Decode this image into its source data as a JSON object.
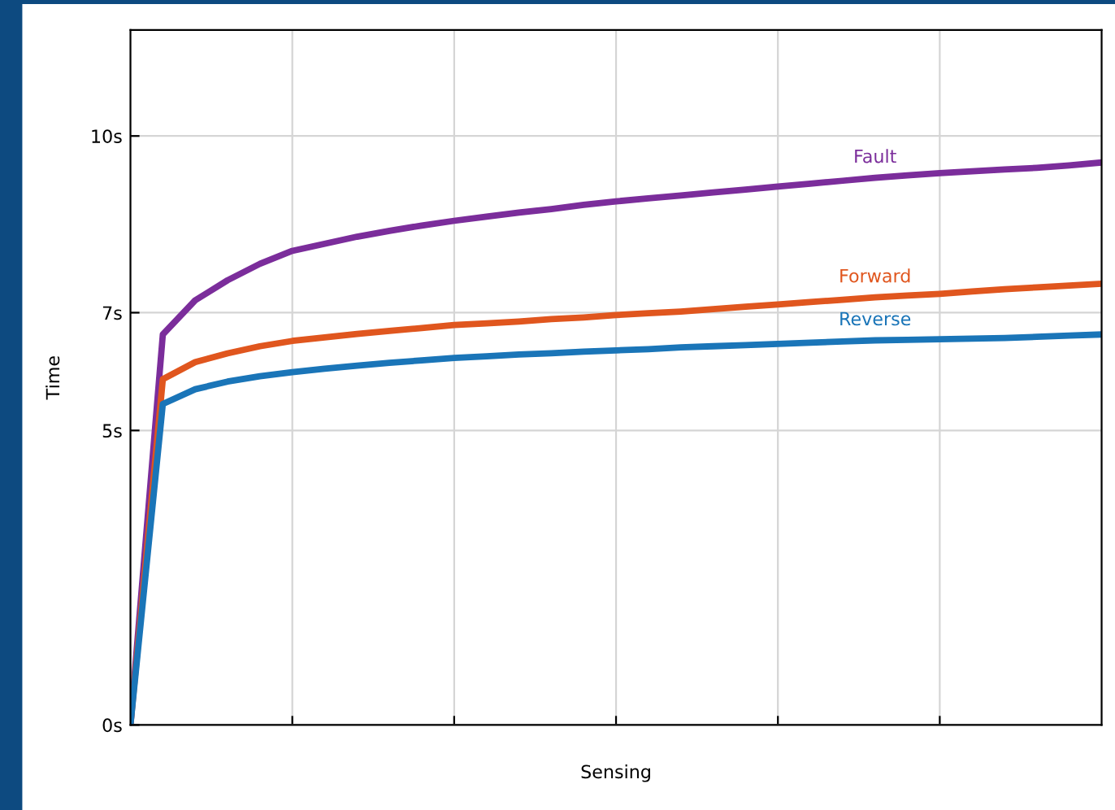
{
  "chart_data": {
    "type": "line",
    "xlabel": "Sensing",
    "ylabel": "Time",
    "categories": [
      null,
      null,
      null,
      null,
      null,
      null,
      null,
      null,
      null,
      null,
      null,
      null,
      null,
      null,
      null,
      null,
      null,
      null,
      null,
      null,
      null,
      null,
      null,
      null,
      null,
      null,
      null,
      null,
      null,
      null,
      null
    ],
    "ylim": [
      0,
      11.8
    ],
    "yticks": [
      {
        "value": 0,
        "label": "0s"
      },
      {
        "value": 5,
        "label": "5s"
      },
      {
        "value": 7,
        "label": "7s"
      },
      {
        "value": 10,
        "label": "10s"
      }
    ],
    "grid": true,
    "marker": "none",
    "line_style": "solid",
    "series": [
      {
        "name": "Fault",
        "color": "#7b2d9b",
        "values": [
          0,
          6.63,
          7.21,
          7.55,
          7.83,
          8.05,
          8.17,
          8.29,
          8.39,
          8.48,
          8.56,
          8.63,
          8.7,
          8.76,
          8.83,
          8.89,
          8.94,
          8.99,
          9.04,
          9.09,
          9.14,
          9.19,
          9.24,
          9.29,
          9.33,
          9.37,
          9.4,
          9.43,
          9.46,
          9.5,
          9.55
        ]
      },
      {
        "name": "Forward",
        "color": "#e0561e",
        "values": [
          0,
          5.87,
          6.16,
          6.31,
          6.43,
          6.52,
          6.58,
          6.64,
          6.69,
          6.74,
          6.79,
          6.82,
          6.85,
          6.89,
          6.92,
          6.96,
          6.99,
          7.02,
          7.06,
          7.1,
          7.14,
          7.18,
          7.22,
          7.26,
          7.29,
          7.32,
          7.36,
          7.4,
          7.43,
          7.46,
          7.49
        ]
      },
      {
        "name": "Reverse",
        "color": "#1a75b8",
        "values": [
          0,
          5.45,
          5.7,
          5.83,
          5.92,
          5.99,
          6.05,
          6.1,
          6.15,
          6.19,
          6.23,
          6.26,
          6.29,
          6.31,
          6.34,
          6.36,
          6.38,
          6.41,
          6.43,
          6.45,
          6.47,
          6.49,
          6.51,
          6.53,
          6.54,
          6.55,
          6.56,
          6.57,
          6.59,
          6.61,
          6.63
        ]
      }
    ]
  }
}
